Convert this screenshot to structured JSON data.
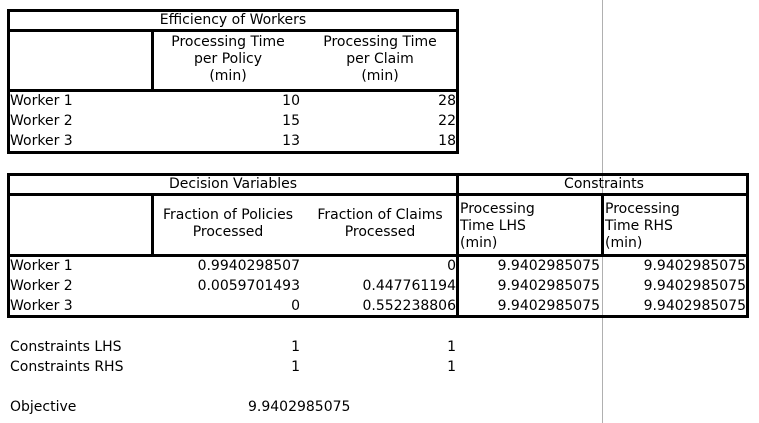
{
  "efficiency": {
    "title": "Efficiency of Workers",
    "headers": [
      "Processing Time\nper Policy\n(min)",
      "Processing Time\nper Claim\n(min)"
    ],
    "rows": [
      {
        "label": "Worker 1",
        "policy": "10",
        "claim": "28"
      },
      {
        "label": "Worker 2",
        "policy": "15",
        "claim": "22"
      },
      {
        "label": "Worker 3",
        "policy": "13",
        "claim": "18"
      }
    ]
  },
  "decision": {
    "title": "Decision Variables",
    "constraints_title": "Constraints",
    "headers": [
      "Fraction of Policies\nProcessed",
      "Fraction of Claims\nProcessed",
      "Processing\nTime LHS\n(min)",
      "Processing\nTime RHS\n(min)"
    ],
    "rows": [
      {
        "label": "Worker 1",
        "policies": "0.9940298507",
        "claims": "0",
        "lhs": "9.9402985075",
        "rhs": "9.9402985075"
      },
      {
        "label": "Worker 2",
        "policies": "0.0059701493",
        "claims": "0.447761194",
        "lhs": "9.9402985075",
        "rhs": "9.9402985075"
      },
      {
        "label": "Worker 3",
        "policies": "0",
        "claims": "0.552238806",
        "lhs": "9.9402985075",
        "rhs": "9.9402985075"
      }
    ]
  },
  "summary": {
    "constraints_lhs": {
      "label": "Constraints LHS",
      "a": "1",
      "b": "1"
    },
    "constraints_rhs": {
      "label": "Constraints RHS",
      "a": "1",
      "b": "1"
    },
    "objective": {
      "label": "Objective",
      "value": "9.9402985075"
    }
  }
}
